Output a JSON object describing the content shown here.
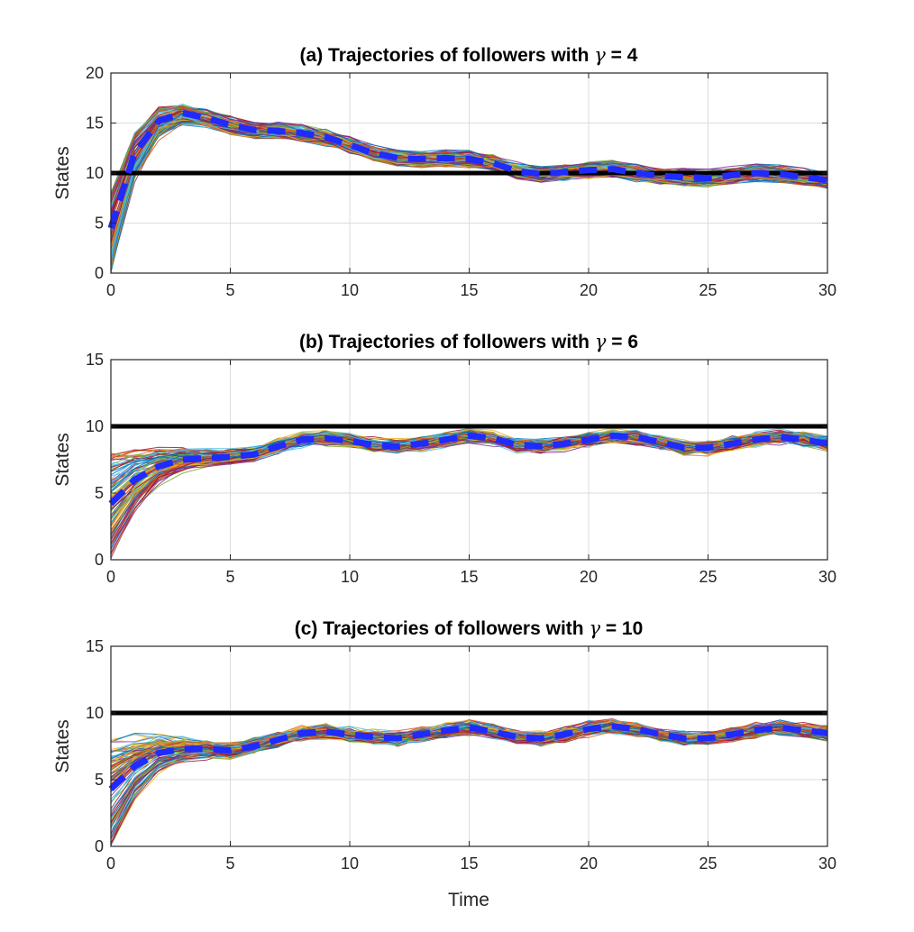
{
  "figure": {
    "xlabel": "Time",
    "colors": {
      "target_line": "#000000",
      "mean_line": "#1f2bff",
      "follower_palette": [
        "#0072BD",
        "#D95319",
        "#EDB120",
        "#7E2F8E",
        "#77AC30",
        "#4DBEEE",
        "#A2142F"
      ]
    }
  },
  "chart_data": [
    {
      "type": "line",
      "title_prefix": "(a) Trajectories of followers with ",
      "title_symbol": "γ",
      "title_suffix": " = 4",
      "xlabel": "",
      "ylabel": "States",
      "xlim": [
        0,
        30
      ],
      "ylim": [
        0,
        20
      ],
      "xticks": [
        "0",
        "5",
        "10",
        "15",
        "20",
        "25",
        "30"
      ],
      "yticks": [
        "0",
        "5",
        "10",
        "15",
        "20"
      ],
      "grid": true,
      "x": [
        0,
        1,
        2,
        3,
        4,
        5,
        6,
        7,
        8,
        9,
        10,
        11,
        12,
        13,
        14,
        15,
        16,
        17,
        18,
        19,
        20,
        21,
        22,
        23,
        24,
        25,
        26,
        27,
        28,
        29,
        30
      ],
      "target": 10,
      "series_mean": [
        4.5,
        12,
        15.2,
        16,
        15.5,
        14.8,
        14.3,
        14.2,
        14,
        13.6,
        12.8,
        12,
        11.5,
        11.4,
        11.5,
        11.4,
        11,
        10.2,
        9.9,
        10.1,
        10.3,
        10.4,
        10,
        9.7,
        9.6,
        9.5,
        9.8,
        10,
        9.9,
        9.6,
        9.3
      ],
      "follower_count": 100,
      "follower_initial_range": [
        0,
        8
      ],
      "follower_spread": 1.2
    },
    {
      "type": "line",
      "title_prefix": "(b) Trajectories of followers with ",
      "title_symbol": "γ",
      "title_suffix": " = 6",
      "xlabel": "",
      "ylabel": "States",
      "xlim": [
        0,
        30
      ],
      "ylim": [
        0,
        15
      ],
      "xticks": [
        "0",
        "5",
        "10",
        "15",
        "20",
        "25",
        "30"
      ],
      "yticks": [
        "0",
        "5",
        "10",
        "15"
      ],
      "grid": true,
      "x": [
        0,
        1,
        2,
        3,
        4,
        5,
        6,
        7,
        8,
        9,
        10,
        11,
        12,
        13,
        14,
        15,
        16,
        17,
        18,
        19,
        20,
        21,
        22,
        23,
        24,
        25,
        26,
        27,
        28,
        29,
        30
      ],
      "target": 10,
      "series_mean": [
        4.2,
        6,
        7,
        7.5,
        7.6,
        7.7,
        7.9,
        8.5,
        9,
        9.1,
        8.9,
        8.6,
        8.5,
        8.7,
        9,
        9.3,
        9.1,
        8.6,
        8.5,
        8.7,
        9,
        9.3,
        9.2,
        8.8,
        8.4,
        8.4,
        8.7,
        9,
        9.2,
        9,
        8.7
      ],
      "follower_count": 100,
      "follower_initial_range": [
        0,
        8
      ],
      "follower_spread": 0.6
    },
    {
      "type": "line",
      "title_prefix": "(c) Trajectories of followers with ",
      "title_symbol": "γ",
      "title_suffix": " = 10",
      "xlabel": "Time",
      "ylabel": "States",
      "xlim": [
        0,
        30
      ],
      "ylim": [
        0,
        15
      ],
      "xticks": [
        "0",
        "5",
        "10",
        "15",
        "20",
        "25",
        "30"
      ],
      "yticks": [
        "0",
        "5",
        "10",
        "15"
      ],
      "grid": true,
      "x": [
        0,
        1,
        2,
        3,
        4,
        5,
        6,
        7,
        8,
        9,
        10,
        11,
        12,
        13,
        14,
        15,
        16,
        17,
        18,
        19,
        20,
        21,
        22,
        23,
        24,
        25,
        26,
        27,
        28,
        29,
        30
      ],
      "target": 10,
      "series_mean": [
        4.3,
        6,
        7,
        7.3,
        7.3,
        7.2,
        7.5,
        8,
        8.5,
        8.6,
        8.4,
        8.2,
        8.1,
        8.4,
        8.7,
        8.9,
        8.6,
        8.2,
        8.1,
        8.4,
        8.8,
        9,
        8.8,
        8.4,
        8.1,
        8.1,
        8.4,
        8.7,
        8.9,
        8.7,
        8.5
      ],
      "follower_count": 100,
      "follower_initial_range": [
        0,
        8
      ],
      "follower_spread": 0.6
    }
  ]
}
